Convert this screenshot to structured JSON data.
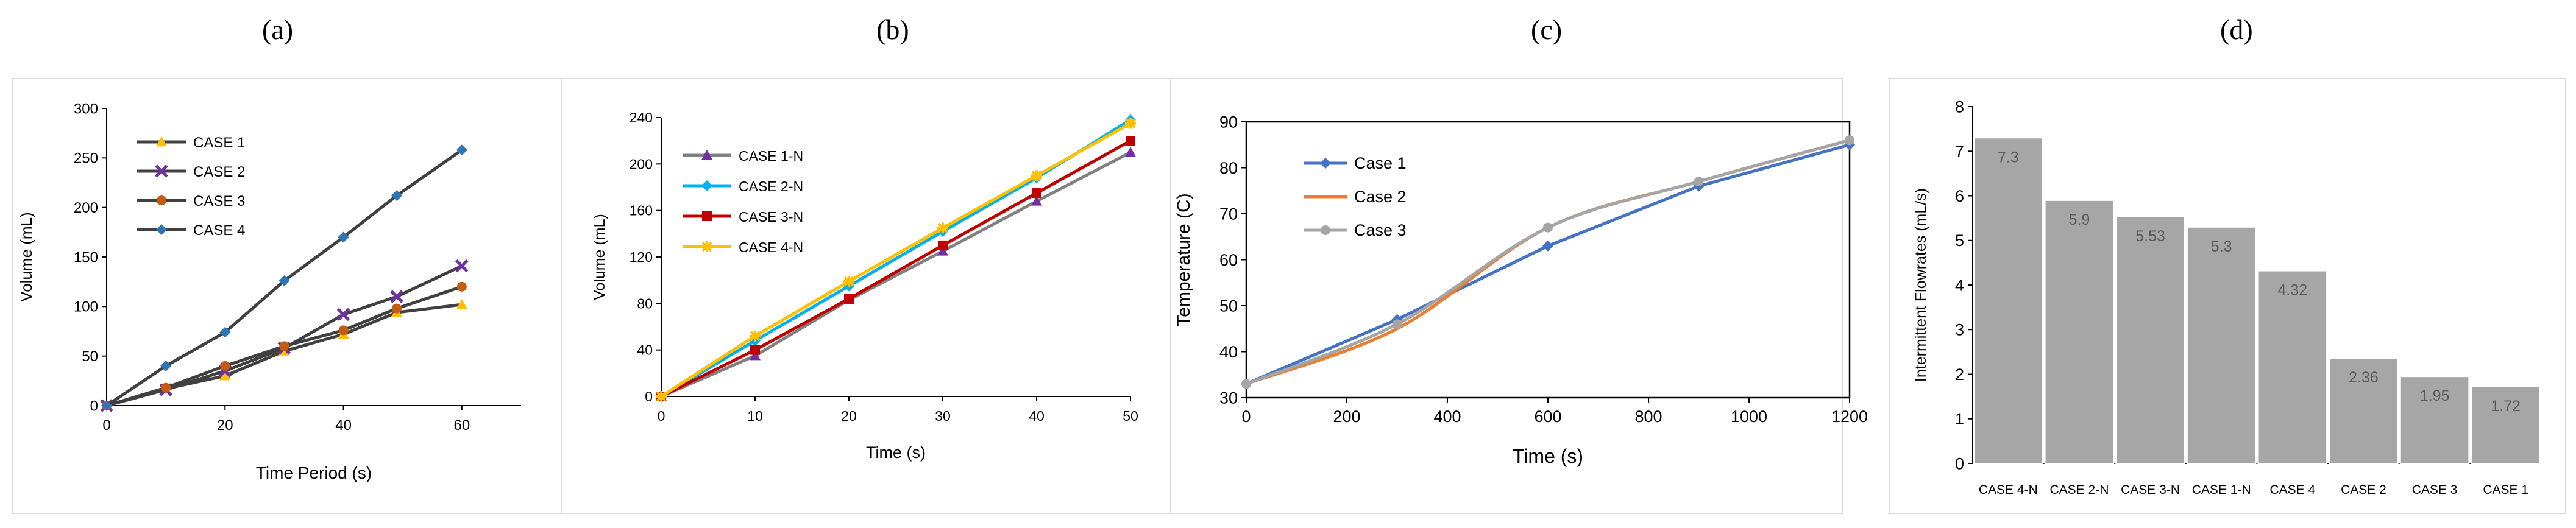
{
  "panel_labels": [
    "(a)",
    "(b)",
    "(c)",
    "(d)"
  ],
  "colors": {
    "case1": "#FFC000",
    "case2": "#7030A0",
    "case3": "#C55A11",
    "case4": "#2E75B6",
    "line_dark": "#404040",
    "case1n": "#7030A0",
    "case2n": "#00B0F0",
    "case3n": "#C00000",
    "case4n": "#FFC000",
    "gray_line": "#808080",
    "c_case1": "#4472C4",
    "c_case2": "#ED7D31",
    "c_case3": "#A5A5A5",
    "bar": "#A6A6A6",
    "axis": "#595959"
  },
  "chart_data": [
    {
      "type": "line",
      "panel": "(a)",
      "xlabel": "Time Period (s)",
      "ylabel": "Volume (mL)",
      "xlim": [
        0,
        70
      ],
      "ylim": [
        0,
        300
      ],
      "xticks": [
        0,
        20,
        40,
        60
      ],
      "yticks": [
        0,
        50,
        100,
        150,
        200,
        250,
        300
      ],
      "legend": "top-left",
      "series": [
        {
          "name": "CASE 1",
          "marker": "triangle",
          "x": [
            0,
            10,
            20,
            30,
            40,
            49,
            60
          ],
          "y": [
            0,
            17,
            30,
            55,
            72,
            94,
            102
          ]
        },
        {
          "name": "CASE 2",
          "marker": "x",
          "x": [
            0,
            10,
            20,
            30,
            40,
            49,
            60
          ],
          "y": [
            0,
            16,
            35,
            58,
            92,
            110,
            141
          ]
        },
        {
          "name": "CASE 3",
          "marker": "circle",
          "x": [
            0,
            10,
            20,
            30,
            40,
            49,
            60
          ],
          "y": [
            0,
            18,
            40,
            60,
            76,
            98,
            120
          ]
        },
        {
          "name": "CASE 4",
          "marker": "diamond",
          "x": [
            0,
            10,
            20,
            30,
            40,
            49,
            60
          ],
          "y": [
            0,
            40,
            74,
            126,
            170,
            212,
            258
          ]
        }
      ]
    },
    {
      "type": "line",
      "panel": "(b)",
      "xlabel": "Time (s)",
      "ylabel": "Volume (mL)",
      "xlim": [
        0,
        50
      ],
      "ylim": [
        0,
        240
      ],
      "xticks": [
        0,
        10,
        20,
        30,
        40,
        50
      ],
      "yticks": [
        0,
        40,
        80,
        120,
        160,
        200,
        240
      ],
      "legend": "top-left",
      "series": [
        {
          "name": "CASE 1-N",
          "marker": "triangle",
          "x": [
            0,
            10,
            20,
            30,
            40,
            50
          ],
          "y": [
            0,
            35,
            83,
            125,
            168,
            210
          ]
        },
        {
          "name": "CASE 2-N",
          "marker": "diamond",
          "x": [
            0,
            10,
            20,
            30,
            40,
            50
          ],
          "y": [
            0,
            48,
            95,
            142,
            188,
            238
          ]
        },
        {
          "name": "CASE 3-N",
          "marker": "square",
          "x": [
            0,
            10,
            20,
            30,
            40,
            50
          ],
          "y": [
            0,
            40,
            84,
            130,
            175,
            220
          ]
        },
        {
          "name": "CASE 4-N",
          "marker": "star",
          "x": [
            0,
            10,
            20,
            30,
            40,
            50
          ],
          "y": [
            0,
            52,
            99,
            145,
            190,
            235
          ]
        }
      ]
    },
    {
      "type": "line",
      "panel": "(c)",
      "xlabel": "Time (s)",
      "ylabel": "Temperature (C)",
      "xlim": [
        0,
        1200
      ],
      "ylim": [
        30,
        90
      ],
      "xticks": [
        0,
        200,
        400,
        600,
        800,
        1000,
        1200
      ],
      "yticks": [
        30,
        40,
        50,
        60,
        70,
        80,
        90
      ],
      "legend": "top-left",
      "series": [
        {
          "name": "Case 1",
          "marker": "diamond",
          "smooth": false,
          "x": [
            0,
            300,
            600,
            900,
            1200
          ],
          "y": [
            33,
            47,
            63,
            76,
            85
          ]
        },
        {
          "name": "Case 2",
          "marker": "none",
          "smooth": true,
          "x": [
            0,
            300,
            600,
            900,
            1200
          ],
          "y": [
            33,
            45,
            67,
            77,
            86
          ]
        },
        {
          "name": "Case 3",
          "marker": "circle",
          "smooth": true,
          "x": [
            0,
            300,
            600,
            900,
            1200
          ],
          "y": [
            33,
            46,
            67,
            77,
            86
          ]
        }
      ]
    },
    {
      "type": "bar",
      "panel": "(d)",
      "xlabel": "",
      "ylabel": "Intermittent Flowrates (mL/s)",
      "ylim": [
        0,
        8
      ],
      "yticks": [
        0,
        1,
        2,
        3,
        4,
        5,
        6,
        7,
        8
      ],
      "categories": [
        "CASE 4-N",
        "CASE 2-N",
        "CASE 3-N",
        "CASE 1-N",
        "CASE 4",
        "CASE 2",
        "CASE 3",
        "CASE 1"
      ],
      "values": [
        7.3,
        5.9,
        5.53,
        5.3,
        4.32,
        2.36,
        1.95,
        1.72
      ]
    }
  ]
}
